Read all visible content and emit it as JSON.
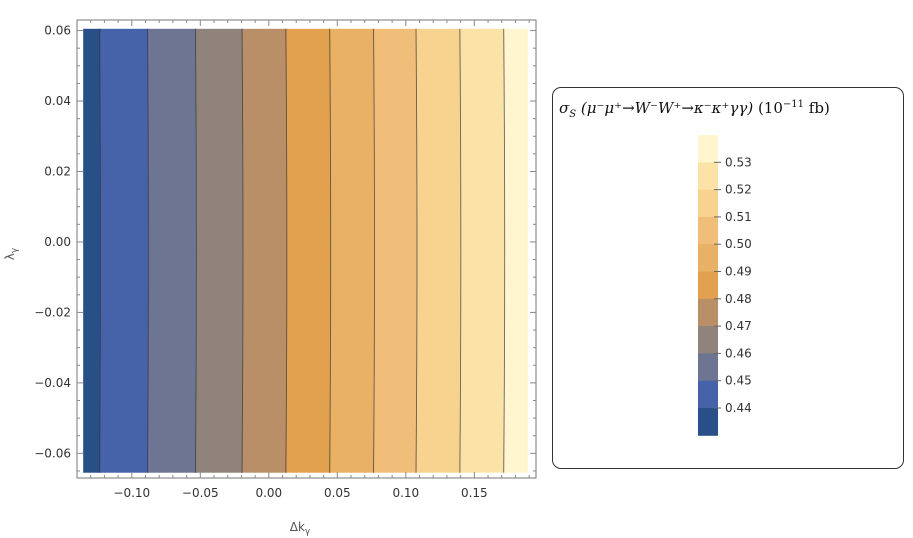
{
  "chart_data": {
    "type": "heatmap",
    "subtype": "contour",
    "xlabel": "Δk",
    "xlabel_sub": "γ",
    "ylabel": "λ",
    "ylabel_sub": "γ",
    "xlim": [
      -0.14,
      0.195
    ],
    "ylim": [
      -0.067,
      0.063
    ],
    "x_ticks": [
      -0.1,
      -0.05,
      0.0,
      0.05,
      0.1,
      0.15
    ],
    "x_tick_labels": [
      "−0.10",
      "−0.05",
      "0.00",
      "0.05",
      "0.10",
      "0.15"
    ],
    "y_ticks": [
      0.06,
      0.04,
      0.02,
      0.0,
      -0.02,
      -0.04,
      -0.06
    ],
    "y_tick_labels": [
      "0.06",
      "0.04",
      "0.02",
      "0.00",
      "−0.02",
      "−0.04",
      "−0.06"
    ],
    "contour_levels": [
      0.44,
      0.45,
      0.46,
      0.47,
      0.48,
      0.49,
      0.5,
      0.51,
      0.52,
      0.53
    ],
    "contour_boundaries_x": [
      -0.123,
      -0.088,
      -0.053,
      -0.019,
      0.013,
      0.045,
      0.077,
      0.108,
      0.14,
      0.172
    ],
    "band_colors": [
      "#284f88",
      "#4662a8",
      "#6e7592",
      "#8f837c",
      "#b98f68",
      "#e1a14f",
      "#e9b165",
      "#f0be78",
      "#f7d38f",
      "#fbe3a8",
      "#fff5cf"
    ],
    "grid": false,
    "legend": {
      "title_prefix": "σ",
      "title_sub": "S",
      "title_process": "(μ⁻μ⁺→W⁻W⁺→κ⁻κ⁺γγ)",
      "title_units_base": "(10",
      "title_units_exp": "−11",
      "title_units_tail": "fb)",
      "placement": "right",
      "labels": [
        "0.53",
        "0.52",
        "0.51",
        "0.50",
        "0.49",
        "0.48",
        "0.47",
        "0.46",
        "0.45",
        "0.44"
      ]
    }
  }
}
